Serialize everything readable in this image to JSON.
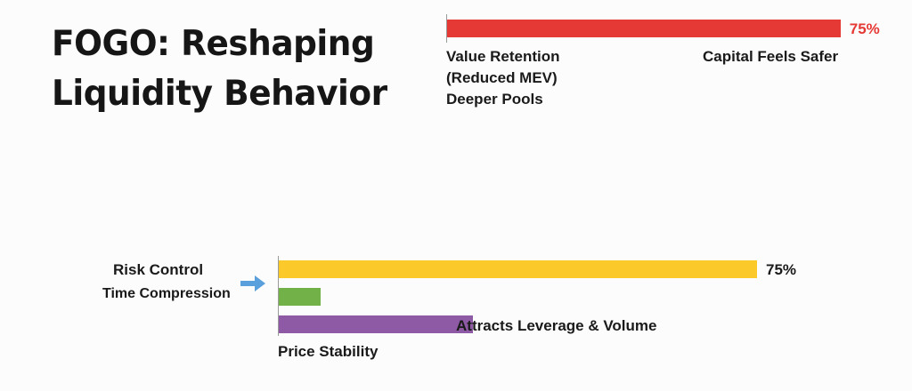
{
  "title": {
    "line1": "FOGO: Reshaping",
    "line2": "Liquidity Behavior"
  },
  "colors": {
    "top_bar": "#e53935",
    "top_pct": "#e53935",
    "yellow": "#fbc929",
    "green": "#72b048",
    "purple": "#8e5aa5",
    "arrow": "#5aa0dc"
  },
  "icons": {
    "pointer": "right-arrow-icon"
  },
  "chart_data": [
    {
      "type": "bar",
      "orientation": "horizontal",
      "max_value": 100,
      "bars": [
        {
          "value": 75,
          "value_label": "75%",
          "color": "#e53935"
        }
      ],
      "labels": {
        "value_retention_line1": "Value Retention",
        "value_retention_line2": "(Reduced MEV)",
        "deeper_pools": "Deeper Pools",
        "capital_feels_safer": "Capital Feels Safer"
      }
    },
    {
      "type": "bar",
      "orientation": "horizontal",
      "max_value": 100,
      "bars": [
        {
          "value": 75,
          "value_label": "75%",
          "color": "#fbc929"
        },
        {
          "value": 6.6,
          "color": "#72b048"
        },
        {
          "value": 30.5,
          "color": "#8e5aa5"
        }
      ],
      "labels": {
        "risk_control": "Risk Control",
        "time_compression": "Time Compression",
        "attracts_leverage": "Attracts Leverage & Volume",
        "price_stability": "Price Stability"
      }
    }
  ]
}
